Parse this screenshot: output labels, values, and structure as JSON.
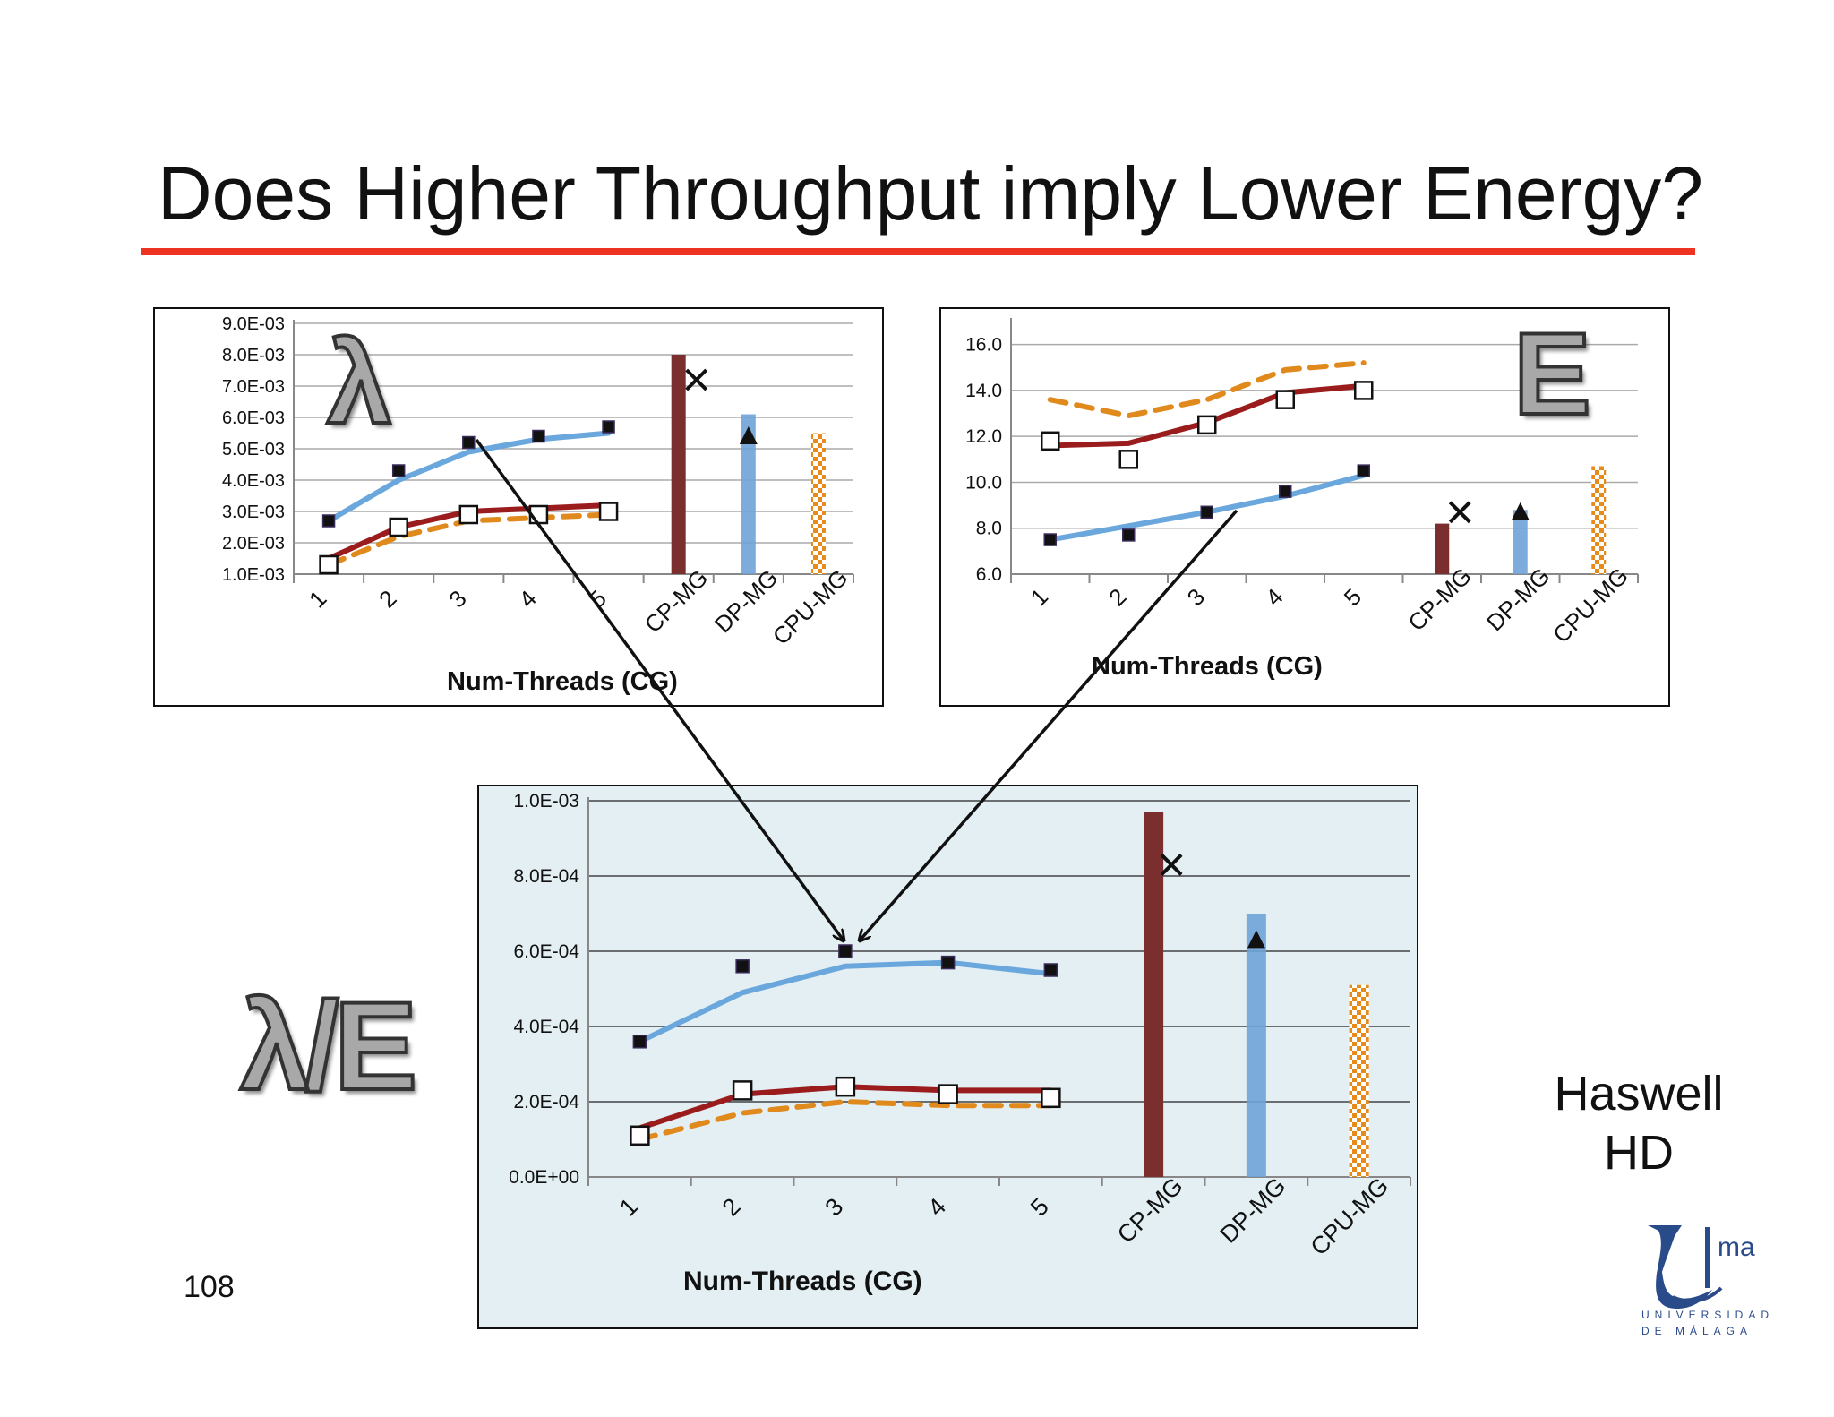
{
  "slide": {
    "title": "Does Higher Throughput imply Lower Energy?",
    "page_number": "108",
    "platform_label": [
      "Haswell",
      "HD"
    ],
    "logo": {
      "text": "ma",
      "caption": [
        "UNIVERSIDAD",
        "DE MÁLAGA"
      ]
    },
    "symbols": {
      "lambda": "λ",
      "energy": "E",
      "ratio": "λ/E"
    },
    "colors": {
      "accent_rule": "#ee3322",
      "cp": "#7a2e2e",
      "dp": "#6fa3d8",
      "cpu": "#e88a1a",
      "line_blue": "#6aa7dd",
      "line_red": "#9b1c1c",
      "line_orange": "#e08a1e"
    }
  },
  "chart_data": [
    {
      "id": "lambda",
      "type": "bar",
      "xlabel": "Num-Threads (CG)",
      "categories": [
        "1",
        "2",
        "3",
        "4",
        "5",
        "CP-MG",
        "DP-MG",
        "CPU-MG"
      ],
      "yticks": [
        "9.0E-03",
        "8.0E-03",
        "7.0E-03",
        "6.0E-03",
        "5.0E-03",
        "4.0E-03",
        "3.0E-03",
        "2.0E-03",
        "1.0E-03"
      ],
      "ylim": [
        0.001,
        0.009
      ],
      "grid": true,
      "lines": [
        {
          "style": "solid",
          "color": "#6aa7dd",
          "values": [
            0.0027,
            0.004,
            0.0049,
            0.0053,
            0.0055
          ]
        },
        {
          "style": "solid",
          "color": "#9b1c1c",
          "values": [
            0.0015,
            0.0025,
            0.003,
            0.0031,
            0.0032
          ]
        },
        {
          "style": "dashed",
          "color": "#e08a1e",
          "values": [
            0.0013,
            0.0022,
            0.0027,
            0.0028,
            0.0029
          ]
        }
      ],
      "points": [
        {
          "marker": "filled-square",
          "values": [
            0.0027,
            0.0043,
            0.0052,
            0.0054,
            0.0057
          ]
        },
        {
          "marker": "open-square",
          "values": [
            0.0013,
            0.0025,
            0.0029,
            0.0029,
            0.003
          ]
        }
      ],
      "bars": [
        {
          "category": "CP-MG",
          "value": 0.008,
          "color": "#7a2e2e",
          "pattern": "solid"
        },
        {
          "category": "DP-MG",
          "value": 0.0061,
          "color": "#6fa3d8",
          "pattern": "solid"
        },
        {
          "category": "CPU-MG",
          "value": 0.0055,
          "color": "#e88a1a",
          "pattern": "checker"
        }
      ],
      "markers": [
        {
          "symbol": "x",
          "category": "CP-MG",
          "value": 0.0072
        },
        {
          "symbol": "triangle",
          "category": "DP-MG",
          "value": 0.0054
        }
      ]
    },
    {
      "id": "energy",
      "type": "bar",
      "xlabel": "Num-Threads (CG)",
      "categories": [
        "1",
        "2",
        "3",
        "4",
        "5",
        "CP-MG",
        "DP-MG",
        "CPU-MG"
      ],
      "yticks": [
        "16.0",
        "14.0",
        "12.0",
        "10.0",
        "8.0",
        "6.0"
      ],
      "ylim": [
        6.0,
        17.0
      ],
      "grid": true,
      "lines": [
        {
          "style": "dashed",
          "color": "#e08a1e",
          "values": [
            13.6,
            12.9,
            13.6,
            14.9,
            15.2
          ]
        },
        {
          "style": "solid",
          "color": "#9b1c1c",
          "values": [
            11.6,
            11.7,
            12.6,
            13.9,
            14.2
          ]
        },
        {
          "style": "solid",
          "color": "#6aa7dd",
          "values": [
            7.5,
            8.1,
            8.7,
            9.4,
            10.3
          ]
        }
      ],
      "points": [
        {
          "marker": "open-square",
          "values": [
            11.8,
            11.0,
            12.5,
            13.6,
            14.0
          ]
        },
        {
          "marker": "filled-square",
          "values": [
            7.5,
            7.7,
            8.7,
            9.6,
            10.5
          ]
        }
      ],
      "bars": [
        {
          "category": "CP-MG",
          "value": 8.2,
          "color": "#7a2e2e",
          "pattern": "solid"
        },
        {
          "category": "DP-MG",
          "value": 8.8,
          "color": "#6fa3d8",
          "pattern": "solid"
        },
        {
          "category": "CPU-MG",
          "value": 10.7,
          "color": "#e88a1a",
          "pattern": "checker"
        }
      ],
      "markers": [
        {
          "symbol": "x",
          "category": "CP-MG",
          "value": 8.7
        },
        {
          "symbol": "triangle",
          "category": "DP-MG",
          "value": 8.7
        }
      ]
    },
    {
      "id": "ratio",
      "type": "bar",
      "xlabel": "Num-Threads (CG)",
      "categories": [
        "1",
        "2",
        "3",
        "4",
        "5",
        "CP-MG",
        "DP-MG",
        "CPU-MG"
      ],
      "yticks": [
        "1.0E-03",
        "8.0E-04",
        "6.0E-04",
        "4.0E-04",
        "2.0E-04",
        "0.0E+00"
      ],
      "ylim": [
        0,
        0.001
      ],
      "grid": true,
      "lines": [
        {
          "style": "solid",
          "color": "#6aa7dd",
          "values": [
            0.00036,
            0.00049,
            0.00056,
            0.00057,
            0.00054
          ]
        },
        {
          "style": "solid",
          "color": "#9b1c1c",
          "values": [
            0.00013,
            0.00022,
            0.00024,
            0.00023,
            0.00023
          ]
        },
        {
          "style": "dashed",
          "color": "#e08a1e",
          "values": [
            0.0001,
            0.00017,
            0.0002,
            0.00019,
            0.00019
          ]
        }
      ],
      "points": [
        {
          "marker": "filled-square",
          "values": [
            0.00036,
            0.00056,
            0.0006,
            0.00057,
            0.00055
          ]
        },
        {
          "marker": "open-square",
          "values": [
            0.00011,
            0.00023,
            0.00024,
            0.00022,
            0.00021
          ]
        }
      ],
      "bars": [
        {
          "category": "CP-MG",
          "value": 0.00097,
          "color": "#7a2e2e",
          "pattern": "solid"
        },
        {
          "category": "DP-MG",
          "value": 0.0007,
          "color": "#6fa3d8",
          "pattern": "solid"
        },
        {
          "category": "CPU-MG",
          "value": 0.00051,
          "color": "#e88a1a",
          "pattern": "checker"
        }
      ],
      "markers": [
        {
          "symbol": "x",
          "category": "CP-MG",
          "value": 0.00083
        },
        {
          "symbol": "triangle",
          "category": "DP-MG",
          "value": 0.00063
        }
      ]
    }
  ]
}
